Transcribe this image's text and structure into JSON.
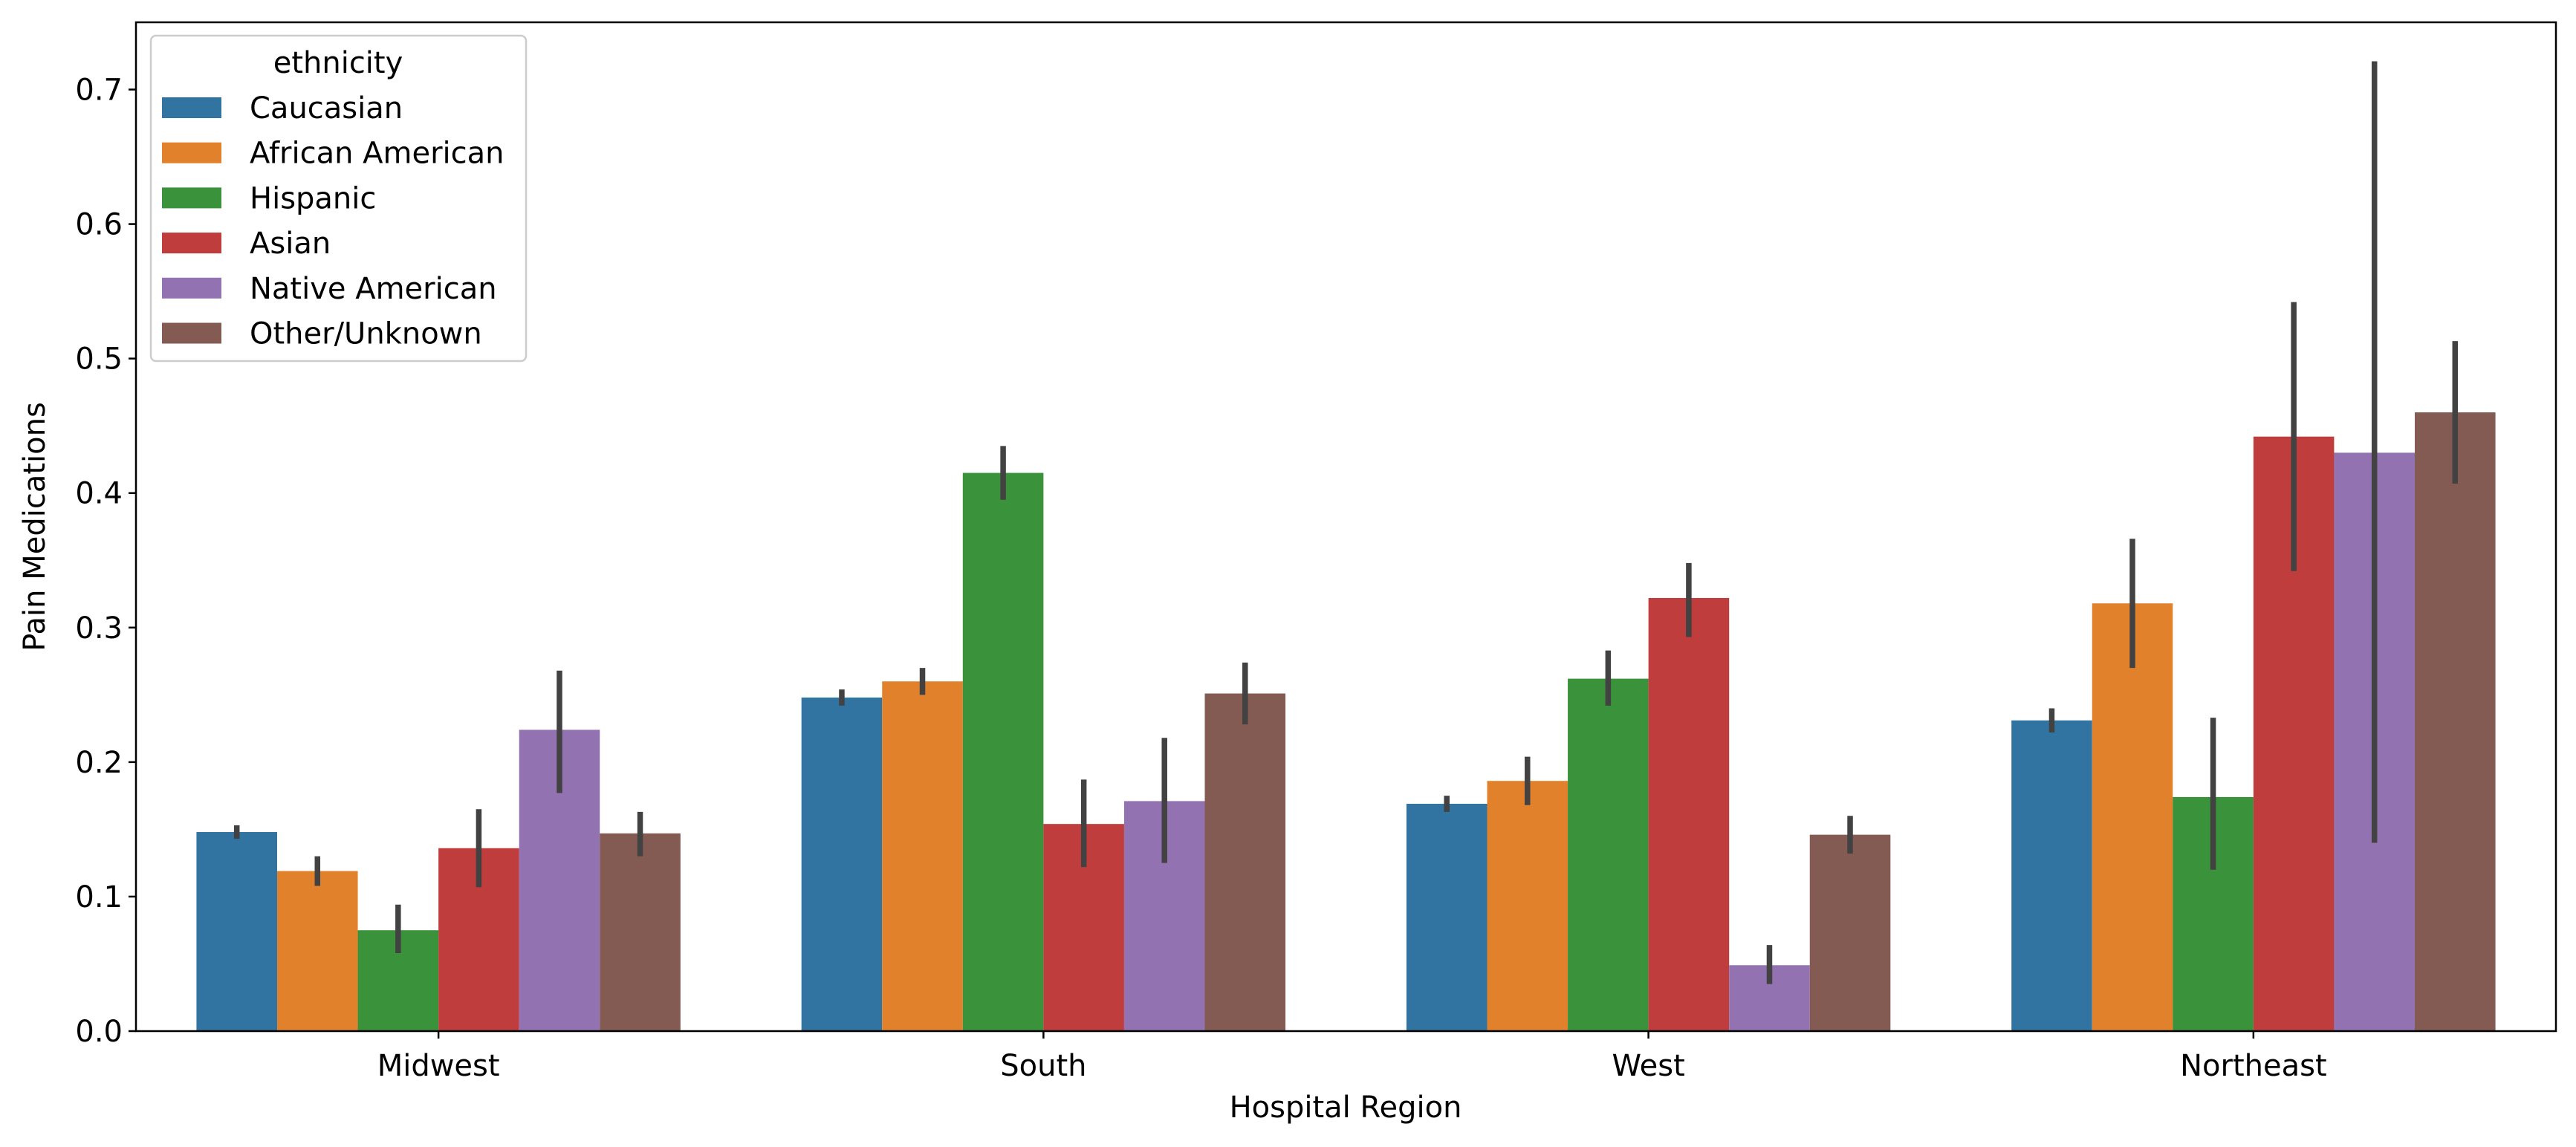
{
  "chart_data": {
    "type": "bar",
    "title": "",
    "xlabel": "Hospital Region",
    "ylabel": "Pain Medications",
    "ylim": [
      0,
      0.75
    ],
    "yticks": [
      "0.0",
      "0.1",
      "0.2",
      "0.3",
      "0.4",
      "0.5",
      "0.6",
      "0.7"
    ],
    "categories": [
      "Midwest",
      "South",
      "West",
      "Northeast"
    ],
    "legend": {
      "title": "ethnicity",
      "placement": "top-left"
    },
    "grid": false,
    "series": [
      {
        "name": "Caucasian",
        "color": "#3274a1",
        "values": [
          0.148,
          0.248,
          0.169,
          0.231
        ],
        "ci_low": [
          0.143,
          0.242,
          0.163,
          0.222
        ],
        "ci_high": [
          0.153,
          0.254,
          0.175,
          0.24
        ]
      },
      {
        "name": "African American",
        "color": "#e1812c",
        "values": [
          0.119,
          0.26,
          0.186,
          0.318
        ],
        "ci_low": [
          0.108,
          0.25,
          0.168,
          0.27
        ],
        "ci_high": [
          0.13,
          0.27,
          0.204,
          0.366
        ]
      },
      {
        "name": "Hispanic",
        "color": "#3a923a",
        "values": [
          0.075,
          0.415,
          0.262,
          0.174
        ],
        "ci_low": [
          0.058,
          0.395,
          0.242,
          0.12
        ],
        "ci_high": [
          0.094,
          0.435,
          0.283,
          0.233
        ]
      },
      {
        "name": "Asian",
        "color": "#c03d3e",
        "values": [
          0.136,
          0.154,
          0.322,
          0.442
        ],
        "ci_low": [
          0.107,
          0.122,
          0.293,
          0.342
        ],
        "ci_high": [
          0.165,
          0.187,
          0.348,
          0.542
        ]
      },
      {
        "name": "Native American",
        "color": "#9372b2",
        "values": [
          0.224,
          0.171,
          0.049,
          0.43
        ],
        "ci_low": [
          0.177,
          0.125,
          0.035,
          0.14
        ],
        "ci_high": [
          0.268,
          0.218,
          0.064,
          0.721
        ]
      },
      {
        "name": "Other/Unknown",
        "color": "#845b53",
        "values": [
          0.147,
          0.251,
          0.146,
          0.46
        ],
        "ci_low": [
          0.13,
          0.228,
          0.132,
          0.407
        ],
        "ci_high": [
          0.163,
          0.274,
          0.16,
          0.513
        ]
      }
    ]
  }
}
